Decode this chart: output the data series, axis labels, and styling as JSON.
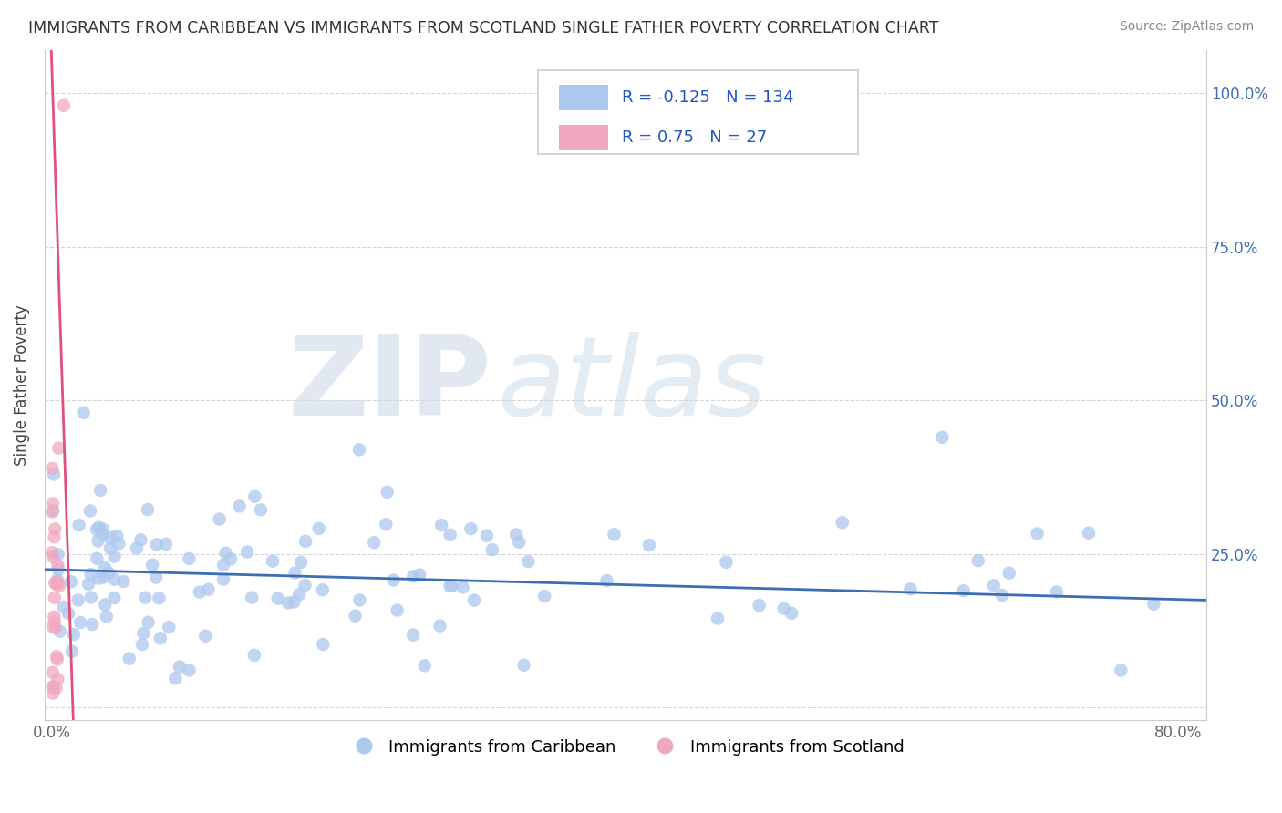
{
  "title": "IMMIGRANTS FROM CARIBBEAN VS IMMIGRANTS FROM SCOTLAND SINGLE FATHER POVERTY CORRELATION CHART",
  "source": "Source: ZipAtlas.com",
  "ylabel": "Single Father Poverty",
  "xlabel_blue": "Immigrants from Caribbean",
  "xlabel_pink": "Immigrants from Scotland",
  "watermark_zip": "ZIP",
  "watermark_atlas": "atlas",
  "blue_R": -0.125,
  "blue_N": 134,
  "pink_R": 0.75,
  "pink_N": 27,
  "blue_color": "#adc8ee",
  "pink_color": "#f0a8c0",
  "blue_line_color": "#3d6eb5",
  "pink_line_color": "#e0507a",
  "xlim": [
    -0.005,
    0.82
  ],
  "ylim": [
    -0.02,
    1.07
  ],
  "xtick_positions": [
    0.0,
    0.1,
    0.2,
    0.3,
    0.4,
    0.5,
    0.6,
    0.7,
    0.8
  ],
  "ytick_positions": [
    0.0,
    0.25,
    0.5,
    0.75,
    1.0
  ],
  "right_ytick_labels": [
    "",
    "25.0%",
    "50.0%",
    "75.0%",
    "100.0%"
  ],
  "left_ytick_labels": [
    "",
    "",
    "",
    "",
    ""
  ],
  "xtick_labels_show": [
    "0.0%",
    "",
    "",
    "",
    "",
    "",
    "",
    "",
    "80.0%"
  ]
}
